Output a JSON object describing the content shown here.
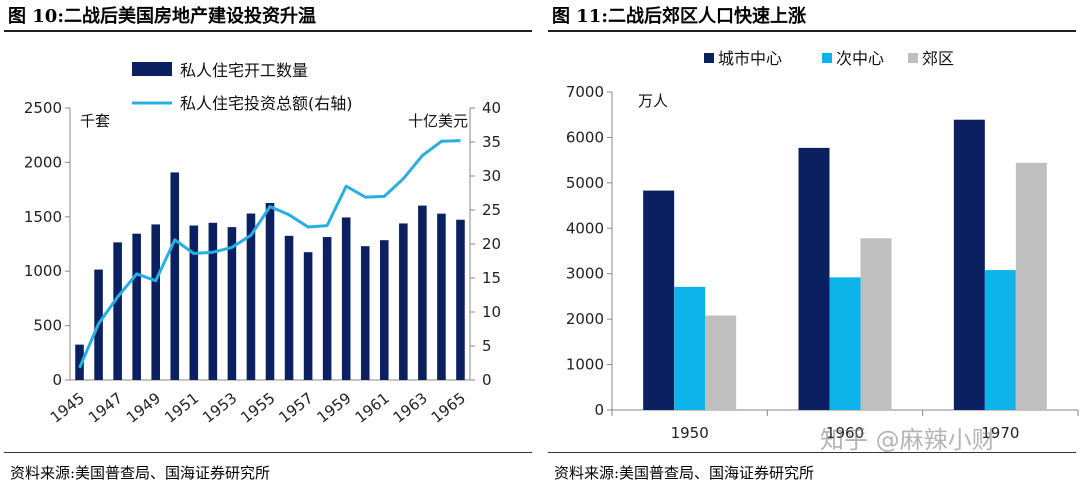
{
  "figure1": {
    "title": "图 10:二战后美国房地产建设投资升温",
    "source": "资料来源:美国普查局、国海证券研究所",
    "chart_data": {
      "type": "bar",
      "categories": [
        "1945",
        "1946",
        "1947",
        "1948",
        "1949",
        "1950",
        "1951",
        "1952",
        "1953",
        "1954",
        "1955",
        "1956",
        "1957",
        "1958",
        "1959",
        "1960",
        "1961",
        "1962",
        "1963",
        "1964",
        "1965"
      ],
      "x_tick_labels": [
        "1945",
        "1947",
        "1949",
        "1951",
        "1953",
        "1955",
        "1957",
        "1959",
        "1961",
        "1963",
        "1965"
      ],
      "left_axis_unit": "千套",
      "right_axis_unit": "十亿美元",
      "ylim_left": [
        0,
        2500
      ],
      "yticks_left": [
        0,
        500,
        1000,
        1500,
        2000,
        2500
      ],
      "ylim_right": [
        0,
        40
      ],
      "yticks_right": [
        0,
        5,
        10,
        15,
        20,
        25,
        30,
        35,
        40
      ],
      "legend_position": "top",
      "series": [
        {
          "name": "私人住宅开工数量",
          "type": "bar",
          "axis": "left",
          "color": "#0b2060",
          "values": [
            325,
            1015,
            1265,
            1345,
            1430,
            1908,
            1420,
            1445,
            1405,
            1530,
            1627,
            1325,
            1175,
            1314,
            1494,
            1230,
            1285,
            1439,
            1603,
            1529,
            1473
          ]
        },
        {
          "name": "私人住宅投资总额(右轴)",
          "type": "line",
          "axis": "right",
          "color": "#29aee2",
          "values": [
            1.8,
            8.3,
            12.2,
            15.6,
            14.6,
            20.6,
            18.6,
            18.8,
            19.5,
            21.3,
            25.5,
            24.3,
            22.5,
            22.7,
            28.5,
            26.9,
            27.0,
            29.6,
            33.0,
            35.1,
            35.2
          ]
        }
      ]
    }
  },
  "figure2": {
    "title": "图 11:二战后郊区人口快速上涨",
    "source": "资料来源:美国普查局、国海证券研究所",
    "watermark": "知乎 @麻辣小财",
    "chart_data": {
      "type": "bar",
      "categories": [
        "1950",
        "1960",
        "1970"
      ],
      "y_unit": "万人",
      "ylim": [
        0,
        7000
      ],
      "yticks": [
        0,
        1000,
        2000,
        3000,
        4000,
        5000,
        6000,
        7000
      ],
      "legend_position": "top",
      "series": [
        {
          "name": "城市中心",
          "color": "#0b2060",
          "values": [
            4830,
            5770,
            6390
          ]
        },
        {
          "name": "次中心",
          "color": "#0cb4ea",
          "values": [
            2710,
            2920,
            3080
          ]
        },
        {
          "name": "郊区",
          "color": "#bfbfbf",
          "values": [
            2080,
            3780,
            5440
          ]
        }
      ]
    }
  }
}
